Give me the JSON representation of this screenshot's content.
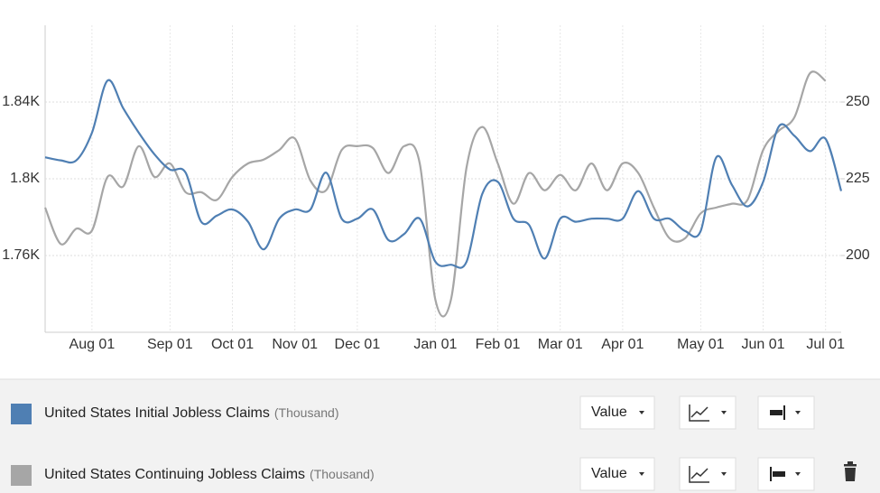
{
  "chart_data": {
    "type": "line",
    "categories": [
      null,
      null,
      null,
      "Aug 01",
      null,
      null,
      null,
      null,
      "Sep 01",
      null,
      null,
      null,
      "Oct 01",
      null,
      null,
      null,
      "Nov 01",
      null,
      null,
      null,
      "Dec 01",
      null,
      null,
      null,
      null,
      "Jan 01",
      null,
      null,
      null,
      "Feb 01",
      null,
      null,
      null,
      "Mar 01",
      null,
      null,
      null,
      "Apr 01",
      null,
      null,
      null,
      null,
      "May 01",
      null,
      null,
      null,
      "Jun 01",
      null,
      null,
      null,
      "Jul 01",
      null
    ],
    "series": [
      {
        "name": "United States Initial Jobless Claims",
        "unit": "(Thousand)",
        "display": "Value",
        "color": "#4f7fb3",
        "axis": "y2",
        "values": [
          232,
          231,
          231,
          240,
          257,
          248,
          240,
          233,
          228,
          227,
          211,
          213,
          215,
          211,
          202,
          212,
          215,
          215,
          227,
          212,
          212,
          215,
          205,
          207,
          212,
          198,
          197,
          198,
          220,
          224,
          212,
          210,
          199,
          212,
          211,
          212,
          212,
          212,
          221,
          212,
          212,
          208,
          208,
          232,
          223,
          216,
          224,
          242,
          239,
          234,
          238,
          221
        ]
      },
      {
        "name": "United States Continuing Jobless Claims",
        "unit": "(Thousand)",
        "display": "Value",
        "color": "#a6a6a6",
        "values": [
          1785,
          1766,
          1774,
          1773,
          1801,
          1796,
          1817,
          1801,
          1808,
          1793,
          1793,
          1789,
          1801,
          1808,
          1810,
          1815,
          1821,
          1799,
          1794,
          1815,
          1817,
          1816,
          1803,
          1817,
          1808,
          1737,
          1737,
          1806,
          1827,
          1808,
          1787,
          1803,
          1794,
          1802,
          1794,
          1808,
          1794,
          1808,
          1803,
          1785,
          1769,
          1769,
          1782,
          1785,
          1787,
          1789,
          1815,
          1825,
          1832,
          1855,
          1851,
          null
        ]
      }
    ],
    "ylim": [
      1720,
      1880
    ],
    "yticks": [
      {
        "value": 1760,
        "label": "1.76K"
      },
      {
        "value": 1800,
        "label": "1.8K"
      },
      {
        "value": 1840,
        "label": "1.84K"
      }
    ],
    "y2lim": [
      175,
      275
    ],
    "y2ticks": [
      200,
      225,
      250
    ],
    "grid": true
  }
}
